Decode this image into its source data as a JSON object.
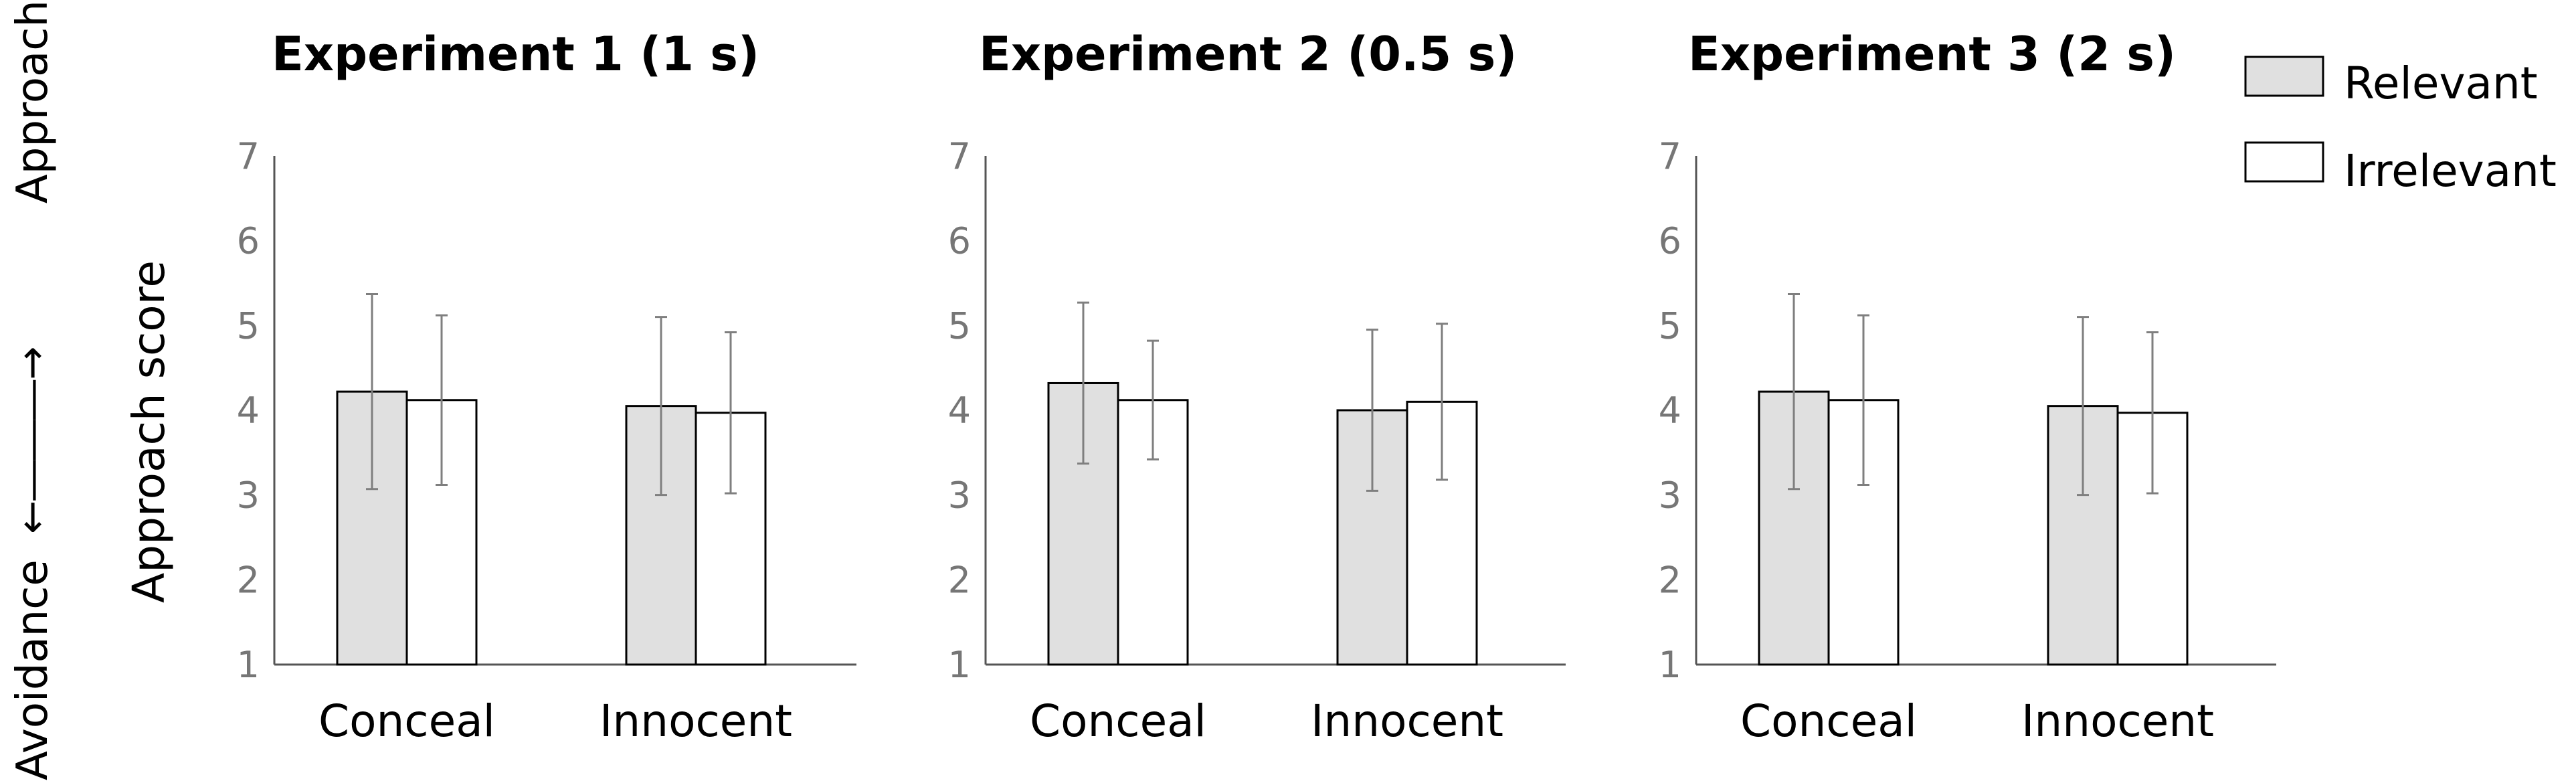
{
  "chart_data": [
    {
      "type": "bar",
      "title": "Experiment 1 (1 s)",
      "categories": [
        "Conceal",
        "Innocent"
      ],
      "series": [
        {
          "name": "Relevant",
          "values": [
            4.22,
            4.05
          ],
          "error": [
            1.15,
            1.05
          ]
        },
        {
          "name": "Irrelevant",
          "values": [
            4.12,
            3.97
          ],
          "error": [
            1.0,
            0.95
          ]
        }
      ],
      "ylim": [
        1,
        7
      ],
      "yticks": [
        "1",
        "2",
        "3",
        "4",
        "5",
        "6",
        "7"
      ]
    },
    {
      "type": "bar",
      "title": "Experiment 2 (0.5 s)",
      "categories": [
        "Conceal",
        "Innocent"
      ],
      "series": [
        {
          "name": "Relevant",
          "values": [
            4.32,
            4.0
          ],
          "error": [
            0.95,
            0.95
          ]
        },
        {
          "name": "Irrelevant",
          "values": [
            4.12,
            4.1
          ],
          "error": [
            0.7,
            0.92
          ]
        }
      ],
      "ylim": [
        1,
        7
      ],
      "yticks": [
        "1",
        "2",
        "3",
        "4",
        "5",
        "6",
        "7"
      ]
    },
    {
      "type": "bar",
      "title": "Experiment 3 (2 s)",
      "categories": [
        "Conceal",
        "Innocent"
      ],
      "series": [
        {
          "name": "Relevant",
          "values": [
            4.22,
            4.05
          ],
          "error": [
            1.15,
            1.05
          ]
        },
        {
          "name": "Irrelevant",
          "values": [
            4.12,
            3.97
          ],
          "error": [
            1.0,
            0.95
          ]
        }
      ],
      "ylim": [
        1,
        7
      ],
      "yticks": [
        "1",
        "2",
        "3",
        "4",
        "5",
        "6",
        "7"
      ]
    }
  ],
  "ylabel": "Approach score",
  "side_labels": {
    "top": "Approach",
    "bottom": "Avoidance"
  },
  "legend": {
    "placement": "top-right",
    "items": [
      {
        "label": "Relevant",
        "color": "#e0e0e0"
      },
      {
        "label": "Irrelevant",
        "color": "#ffffff"
      }
    ]
  },
  "colors": {
    "relevant": "#e0e0e0",
    "irrelevant": "#ffffff",
    "bar_edge": "#000000",
    "error_bar": "#7f7f7f",
    "axis": "#555555"
  }
}
